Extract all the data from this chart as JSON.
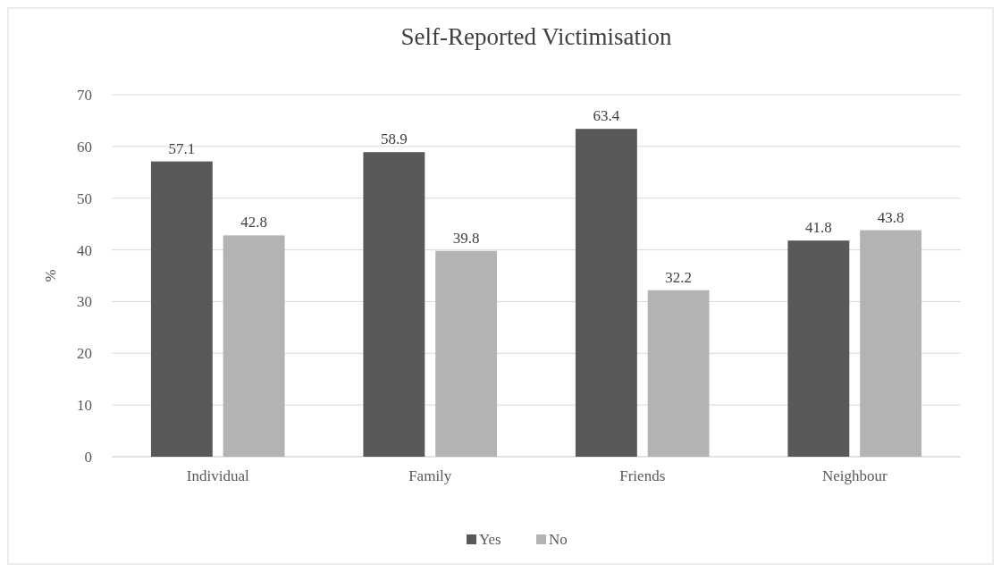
{
  "chart_data": {
    "type": "bar",
    "title": "Self-Reported Victimisation",
    "ylabel": "%",
    "categories": [
      "Individual",
      "Family",
      "Friends",
      "Neighbour"
    ],
    "series": [
      {
        "name": "Yes",
        "color": "#595959",
        "values": [
          57.1,
          58.9,
          63.4,
          41.8
        ]
      },
      {
        "name": "No",
        "color": "#b3b3b3",
        "values": [
          42.8,
          39.8,
          32.2,
          43.8
        ]
      }
    ],
    "ylim": [
      0,
      70
    ],
    "yticks": [
      0,
      10,
      20,
      30,
      40,
      50,
      60,
      70
    ],
    "grid": "y",
    "legend": "bottom",
    "data_labels": true
  }
}
